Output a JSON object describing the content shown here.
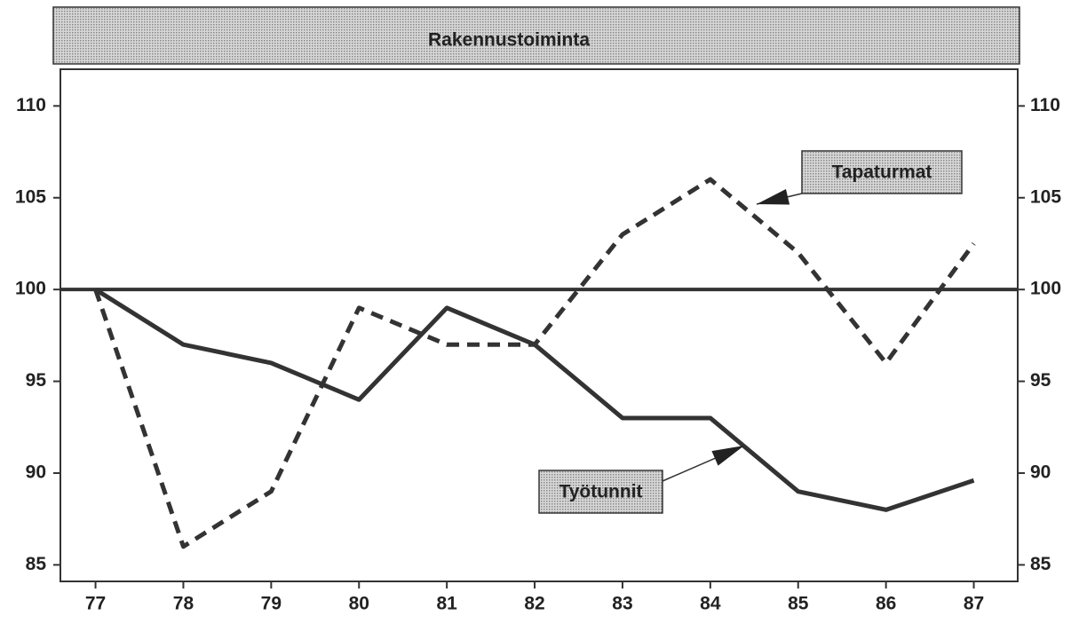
{
  "chart_data": {
    "type": "line",
    "title": "Rakennustoiminta",
    "x": [
      77,
      78,
      79,
      80,
      81,
      82,
      83,
      84,
      85,
      86,
      87
    ],
    "xlim": [
      76.6,
      87.5
    ],
    "xticks": [
      77,
      78,
      79,
      80,
      81,
      82,
      83,
      84,
      85,
      86,
      87
    ],
    "ylim": [
      84.1,
      112
    ],
    "yticks": [
      85,
      90,
      95,
      100,
      105,
      110
    ],
    "reference_line": 100,
    "series": [
      {
        "name": "Työtunnit",
        "color": "#333333",
        "dash": false,
        "values": [
          100,
          97,
          96,
          94,
          99,
          97,
          93,
          93,
          89,
          88,
          89.6
        ]
      },
      {
        "name": "Tapaturmat",
        "color": "#333333",
        "dash": true,
        "values": [
          100,
          86,
          89,
          99,
          97,
          97,
          103,
          106,
          102,
          96,
          102.5
        ]
      }
    ]
  }
}
